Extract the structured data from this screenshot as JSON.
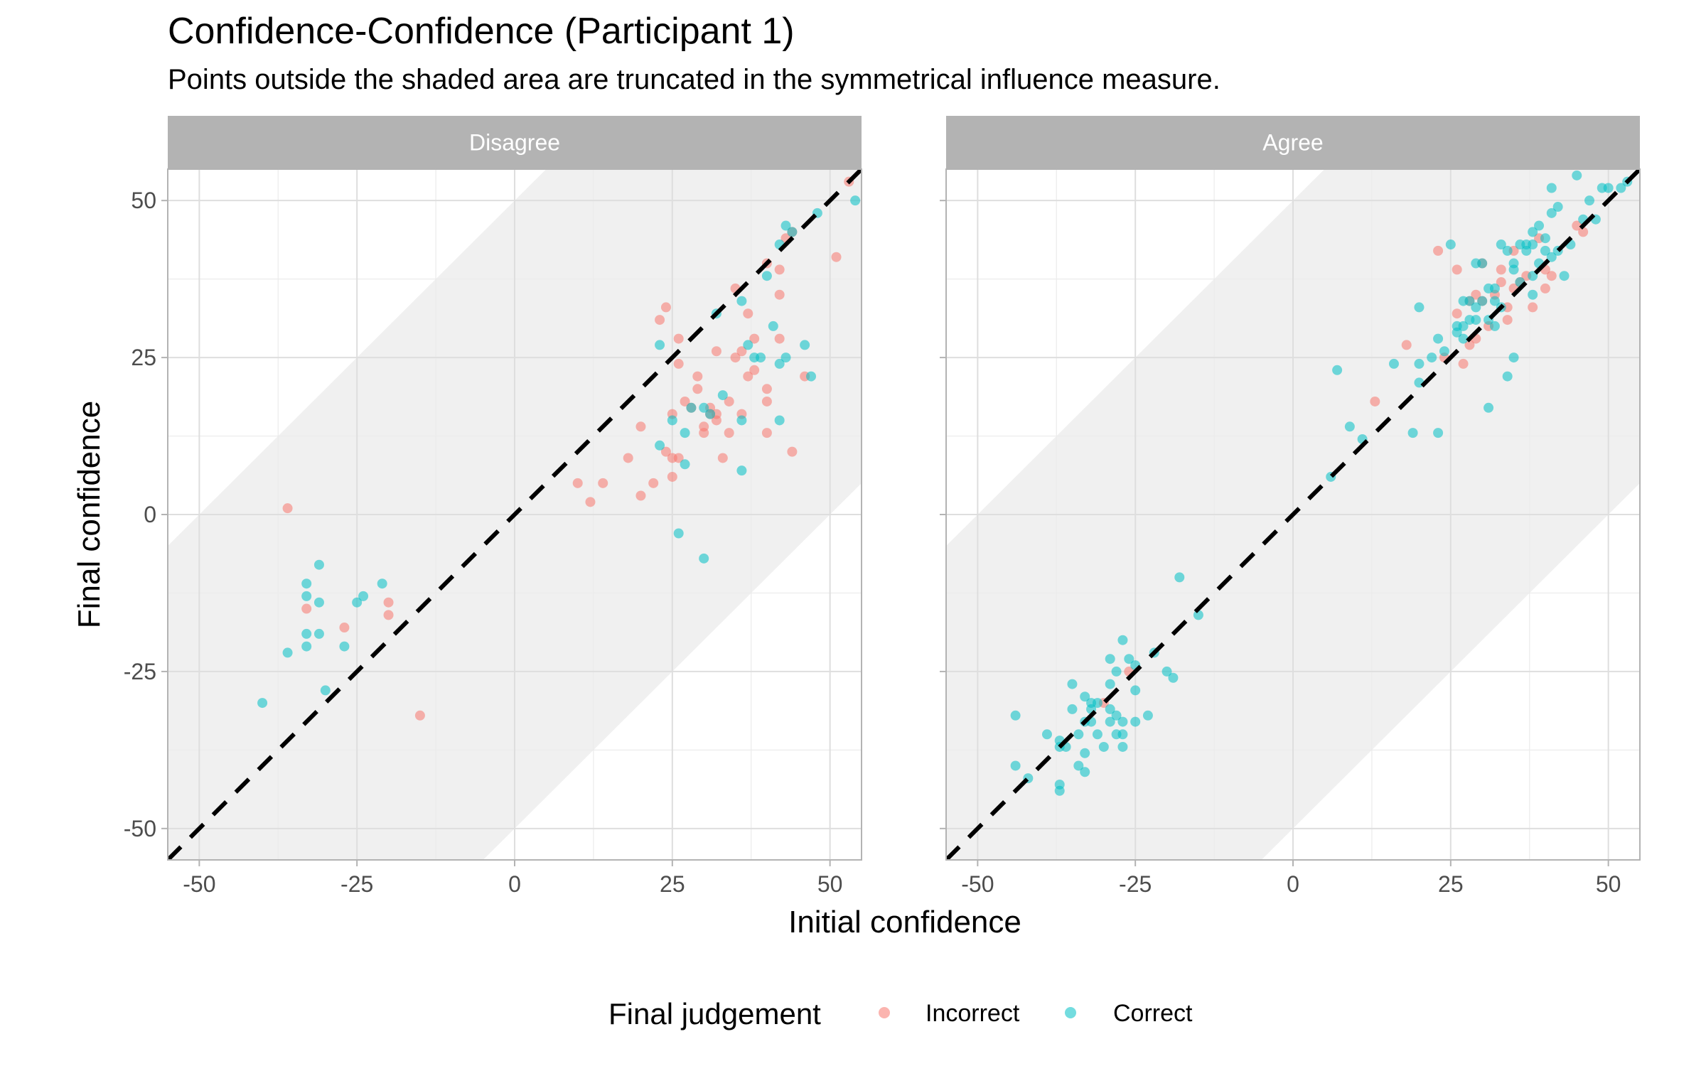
{
  "title": "Confidence-Confidence (Participant 1)",
  "subtitle": "Points outside the shaded area are truncated in the symmetrical influence measure.",
  "colors": {
    "Incorrect": "#F8766D",
    "Correct": "#00BFC4",
    "strip": "#B3B3B3",
    "band": "#F0F0F0"
  },
  "legend": {
    "title": "Final judgement",
    "items": [
      "Incorrect",
      "Correct"
    ]
  },
  "chart_data": {
    "type": "scatter",
    "xlabel": "Initial confidence",
    "ylabel": "Final confidence",
    "xlim": [
      -55,
      55
    ],
    "ylim": [
      -55,
      55
    ],
    "xticks": [
      -50,
      -25,
      0,
      25,
      50
    ],
    "yticks": [
      50,
      25,
      0,
      -25,
      -50
    ],
    "grid": true,
    "legend_position": "bottom",
    "reference_line": {
      "type": "identity",
      "style": "dashed"
    },
    "shaded_band": "|y - x| <= 50",
    "panels": [
      {
        "name": "Disagree",
        "series": [
          {
            "name": "Incorrect",
            "points": [
              [
                -36,
                1
              ],
              [
                -33,
                -15
              ],
              [
                -27,
                -18
              ],
              [
                -20,
                -14
              ],
              [
                -20,
                -16
              ],
              [
                -15,
                -32
              ],
              [
                10,
                5
              ],
              [
                12,
                2
              ],
              [
                14,
                5
              ],
              [
                18,
                9
              ],
              [
                20,
                3
              ],
              [
                20,
                14
              ],
              [
                22,
                5
              ],
              [
                23,
                31
              ],
              [
                24,
                33
              ],
              [
                24,
                10
              ],
              [
                25,
                16
              ],
              [
                25,
                9
              ],
              [
                25,
                6
              ],
              [
                26,
                28
              ],
              [
                26,
                9
              ],
              [
                26,
                24
              ],
              [
                27,
                18
              ],
              [
                28,
                17
              ],
              [
                29,
                20
              ],
              [
                29,
                22
              ],
              [
                30,
                14
              ],
              [
                30,
                13
              ],
              [
                31,
                17
              ],
              [
                31,
                16
              ],
              [
                32,
                15
              ],
              [
                32,
                16
              ],
              [
                32,
                26
              ],
              [
                33,
                9
              ],
              [
                34,
                18
              ],
              [
                34,
                13
              ],
              [
                35,
                36
              ],
              [
                35,
                25
              ],
              [
                36,
                16
              ],
              [
                36,
                26
              ],
              [
                37,
                32
              ],
              [
                37,
                22
              ],
              [
                38,
                23
              ],
              [
                38,
                28
              ],
              [
                40,
                40
              ],
              [
                40,
                20
              ],
              [
                40,
                18
              ],
              [
                40,
                13
              ],
              [
                42,
                39
              ],
              [
                42,
                35
              ],
              [
                42,
                28
              ],
              [
                43,
                44
              ],
              [
                44,
                10
              ],
              [
                44,
                45
              ],
              [
                46,
                22
              ],
              [
                51,
                41
              ],
              [
                53,
                53
              ]
            ]
          },
          {
            "name": "Correct",
            "points": [
              [
                -40,
                -30
              ],
              [
                -36,
                -22
              ],
              [
                -33,
                -11
              ],
              [
                -33,
                -13
              ],
              [
                -33,
                -19
              ],
              [
                -33,
                -21
              ],
              [
                -31,
                -8
              ],
              [
                -31,
                -14
              ],
              [
                -31,
                -19
              ],
              [
                -30,
                -28
              ],
              [
                -27,
                -21
              ],
              [
                -25,
                -14
              ],
              [
                -24,
                -13
              ],
              [
                -21,
                -11
              ],
              [
                23,
                27
              ],
              [
                23,
                11
              ],
              [
                25,
                15
              ],
              [
                26,
                -3
              ],
              [
                27,
                13
              ],
              [
                27,
                8
              ],
              [
                28,
                17
              ],
              [
                30,
                17
              ],
              [
                30,
                -7
              ],
              [
                31,
                16
              ],
              [
                32,
                32
              ],
              [
                33,
                19
              ],
              [
                36,
                15
              ],
              [
                36,
                7
              ],
              [
                37,
                27
              ],
              [
                38,
                25
              ],
              [
                39,
                25
              ],
              [
                40,
                38
              ],
              [
                41,
                30
              ],
              [
                42,
                24
              ],
              [
                42,
                15
              ],
              [
                42,
                43
              ],
              [
                43,
                46
              ],
              [
                43,
                25
              ],
              [
                44,
                45
              ],
              [
                46,
                27
              ],
              [
                47,
                22
              ],
              [
                48,
                48
              ],
              [
                54,
                50
              ],
              [
                36,
                34
              ]
            ]
          }
        ]
      },
      {
        "name": "Agree",
        "series": [
          {
            "name": "Incorrect",
            "points": [
              [
                -30,
                -30
              ],
              [
                -26,
                -25
              ],
              [
                13,
                18
              ],
              [
                18,
                27
              ],
              [
                23,
                42
              ],
              [
                24,
                25
              ],
              [
                26,
                39
              ],
              [
                26,
                32
              ],
              [
                27,
                24
              ],
              [
                28,
                34
              ],
              [
                28,
                27
              ],
              [
                29,
                35
              ],
              [
                29,
                28
              ],
              [
                30,
                34
              ],
              [
                30,
                40
              ],
              [
                31,
                30
              ],
              [
                32,
                35
              ],
              [
                33,
                37
              ],
              [
                33,
                39
              ],
              [
                34,
                33
              ],
              [
                34,
                31
              ],
              [
                35,
                36
              ],
              [
                35,
                42
              ],
              [
                36,
                37
              ],
              [
                37,
                38
              ],
              [
                38,
                33
              ],
              [
                39,
                44
              ],
              [
                40,
                39
              ],
              [
                40,
                36
              ],
              [
                41,
                38
              ],
              [
                45,
                46
              ],
              [
                46,
                45
              ]
            ]
          },
          {
            "name": "Correct",
            "points": [
              [
                -44,
                -32
              ],
              [
                -44,
                -40
              ],
              [
                -42,
                -42
              ],
              [
                -39,
                -35
              ],
              [
                -37,
                -36
              ],
              [
                -37,
                -37
              ],
              [
                -37,
                -43
              ],
              [
                -37,
                -44
              ],
              [
                -36,
                -37
              ],
              [
                -35,
                -27
              ],
              [
                -35,
                -31
              ],
              [
                -34,
                -35
              ],
              [
                -34,
                -40
              ],
              [
                -33,
                -29
              ],
              [
                -33,
                -33
              ],
              [
                -33,
                -38
              ],
              [
                -33,
                -41
              ],
              [
                -32,
                -30
              ],
              [
                -32,
                -31
              ],
              [
                -32,
                -33
              ],
              [
                -31,
                -30
              ],
              [
                -31,
                -35
              ],
              [
                -30,
                -37
              ],
              [
                -29,
                -23
              ],
              [
                -29,
                -27
              ],
              [
                -29,
                -31
              ],
              [
                -29,
                -33
              ],
              [
                -28,
                -25
              ],
              [
                -28,
                -32
              ],
              [
                -28,
                -35
              ],
              [
                -27,
                -20
              ],
              [
                -27,
                -33
              ],
              [
                -27,
                -35
              ],
              [
                -27,
                -37
              ],
              [
                -26,
                -23
              ],
              [
                -25,
                -33
              ],
              [
                -25,
                -28
              ],
              [
                -25,
                -24
              ],
              [
                -23,
                -32
              ],
              [
                -22,
                -22
              ],
              [
                -20,
                -25
              ],
              [
                -19,
                -26
              ],
              [
                -18,
                -10
              ],
              [
                -15,
                -16
              ],
              [
                6,
                6
              ],
              [
                7,
                23
              ],
              [
                9,
                14
              ],
              [
                11,
                12
              ],
              [
                16,
                24
              ],
              [
                19,
                13
              ],
              [
                20,
                33
              ],
              [
                20,
                24
              ],
              [
                20,
                21
              ],
              [
                22,
                25
              ],
              [
                23,
                28
              ],
              [
                23,
                13
              ],
              [
                24,
                26
              ],
              [
                25,
                43
              ],
              [
                26,
                30
              ],
              [
                26,
                29
              ],
              [
                27,
                34
              ],
              [
                27,
                30
              ],
              [
                27,
                28
              ],
              [
                28,
                34
              ],
              [
                28,
                31
              ],
              [
                29,
                40
              ],
              [
                29,
                33
              ],
              [
                29,
                31
              ],
              [
                30,
                40
              ],
              [
                30,
                34
              ],
              [
                31,
                17
              ],
              [
                31,
                36
              ],
              [
                31,
                31
              ],
              [
                32,
                34
              ],
              [
                32,
                30
              ],
              [
                32,
                36
              ],
              [
                33,
                43
              ],
              [
                33,
                33
              ],
              [
                34,
                42
              ],
              [
                34,
                22
              ],
              [
                35,
                25
              ],
              [
                35,
                39
              ],
              [
                35,
                40
              ],
              [
                36,
                43
              ],
              [
                36,
                37
              ],
              [
                37,
                43
              ],
              [
                37,
                42
              ],
              [
                38,
                38
              ],
              [
                38,
                35
              ],
              [
                38,
                43
              ],
              [
                38,
                45
              ],
              [
                39,
                40
              ],
              [
                39,
                46
              ],
              [
                40,
                42
              ],
              [
                40,
                44
              ],
              [
                41,
                41
              ],
              [
                41,
                48
              ],
              [
                41,
                52
              ],
              [
                42,
                49
              ],
              [
                42,
                42
              ],
              [
                43,
                38
              ],
              [
                44,
                43
              ],
              [
                45,
                54
              ],
              [
                46,
                47
              ],
              [
                47,
                50
              ],
              [
                48,
                47
              ],
              [
                49,
                52
              ],
              [
                50,
                52
              ],
              [
                52,
                52
              ],
              [
                53,
                53
              ]
            ]
          }
        ]
      }
    ]
  }
}
